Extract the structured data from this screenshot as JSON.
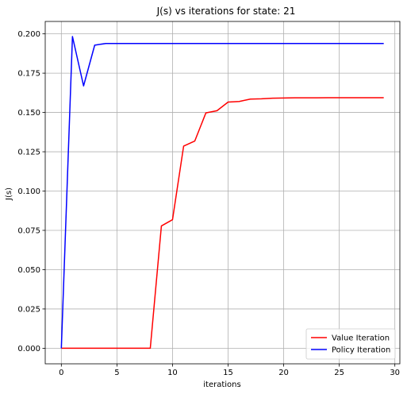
{
  "chart_data": {
    "type": "line",
    "title": "J(s) vs iterations for state: 21",
    "xlabel": "iterations",
    "ylabel": "J(s)",
    "xlim": [
      -1.45,
      30.45
    ],
    "ylim": [
      -0.0099,
      0.2079
    ],
    "xticks": [
      0,
      5,
      10,
      15,
      20,
      25,
      30
    ],
    "yticks": [
      0.0,
      0.025,
      0.05,
      0.075,
      0.1,
      0.125,
      0.15,
      0.175,
      0.2
    ],
    "xtick_labels": [
      "0",
      "5",
      "10",
      "15",
      "20",
      "25",
      "30"
    ],
    "ytick_labels": [
      "0.000",
      "0.025",
      "0.050",
      "0.075",
      "0.100",
      "0.125",
      "0.150",
      "0.175",
      "0.200"
    ],
    "grid": true,
    "legend_position": "bottom-right",
    "x": [
      0,
      1,
      2,
      3,
      4,
      5,
      6,
      7,
      8,
      9,
      10,
      11,
      12,
      13,
      14,
      15,
      16,
      17,
      18,
      19,
      20,
      21,
      22,
      23,
      24,
      25,
      26,
      27,
      28,
      29
    ],
    "series": [
      {
        "name": "Value Iteration",
        "color": "#ff0000",
        "values": [
          0,
          0,
          0,
          0,
          0,
          0,
          0,
          0,
          0,
          0.0778,
          0.0818,
          0.1286,
          0.1318,
          0.1497,
          0.1511,
          0.1566,
          0.157,
          0.1585,
          0.1587,
          0.1591,
          0.1592,
          0.1593,
          0.1593,
          0.1593,
          0.1594,
          0.1594,
          0.1594,
          0.1594,
          0.1594,
          0.1594
        ]
      },
      {
        "name": "Policy Iteration",
        "color": "#0000ff",
        "values": [
          0,
          0.1983,
          0.1669,
          0.1928,
          0.1939,
          0.1939,
          0.1939,
          0.1939,
          0.1939,
          0.1939,
          0.1939,
          0.1939,
          0.1939,
          0.1939,
          0.1939,
          0.1939,
          0.1939,
          0.1939,
          0.1939,
          0.1939,
          0.1939,
          0.1939,
          0.1939,
          0.1939,
          0.1939,
          0.1939,
          0.1939,
          0.1939,
          0.1939,
          0.1939
        ]
      }
    ]
  }
}
